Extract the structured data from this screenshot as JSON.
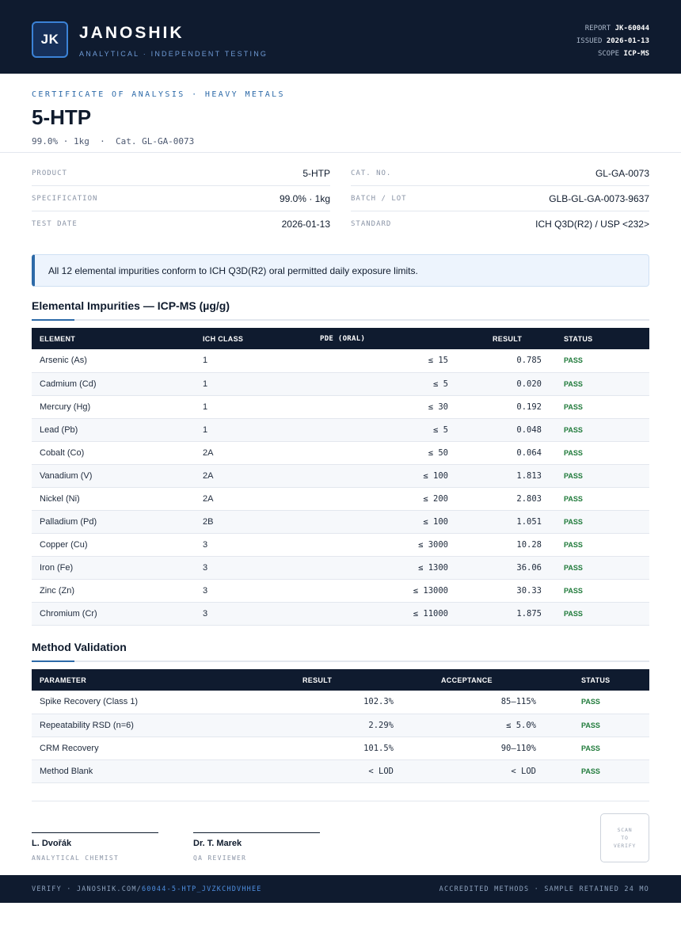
{
  "header": {
    "logo_text": "JK",
    "brand": "JANOSHIK",
    "tagline": "ANALYTICAL · INDEPENDENT TESTING",
    "report_label": "REPORT",
    "report_value": "JK-60044",
    "issued_label": "ISSUED",
    "issued_value": "2026-01-13",
    "scope_label": "SCOPE",
    "scope_value": "ICP-MS"
  },
  "title_block": {
    "certificate_label": "CERTIFICATE OF ANALYSIS · HEAVY METALS",
    "product_title": "5-HTP",
    "subline": "99.0% · 1kg  ·  Cat. GL-GA-0073"
  },
  "info": {
    "left": [
      {
        "label": "PRODUCT",
        "value": "5-HTP"
      },
      {
        "label": "SPECIFICATION",
        "value": "99.0% · 1kg"
      },
      {
        "label": "TEST DATE",
        "value": "2026-01-13"
      }
    ],
    "right": [
      {
        "label": "CAT. NO.",
        "value": "GL-GA-0073"
      },
      {
        "label": "BATCH / LOT",
        "value": "GLB-GL-GA-0073-9637"
      },
      {
        "label": "STANDARD",
        "value": "ICH Q3D(R2) / USP <232>"
      }
    ]
  },
  "notice": "All 12 elemental impurities conform to ICH Q3D(R2) oral permitted daily exposure limits.",
  "impurities": {
    "title": "Elemental Impurities — ICP-MS (µg/g)",
    "headers": [
      "ELEMENT",
      "ICH CLASS",
      "PDE (ORAL)",
      "RESULT",
      "STATUS"
    ],
    "rows": [
      {
        "element": "Arsenic (As)",
        "class": "1",
        "pde": "≤ 15",
        "result": "0.785",
        "status": "PASS"
      },
      {
        "element": "Cadmium (Cd)",
        "class": "1",
        "pde": "≤ 5",
        "result": "0.020",
        "status": "PASS"
      },
      {
        "element": "Mercury (Hg)",
        "class": "1",
        "pde": "≤ 30",
        "result": "0.192",
        "status": "PASS"
      },
      {
        "element": "Lead (Pb)",
        "class": "1",
        "pde": "≤ 5",
        "result": "0.048",
        "status": "PASS"
      },
      {
        "element": "Cobalt (Co)",
        "class": "2A",
        "pde": "≤ 50",
        "result": "0.064",
        "status": "PASS"
      },
      {
        "element": "Vanadium (V)",
        "class": "2A",
        "pde": "≤ 100",
        "result": "1.813",
        "status": "PASS"
      },
      {
        "element": "Nickel (Ni)",
        "class": "2A",
        "pde": "≤ 200",
        "result": "2.803",
        "status": "PASS"
      },
      {
        "element": "Palladium (Pd)",
        "class": "2B",
        "pde": "≤ 100",
        "result": "1.051",
        "status": "PASS"
      },
      {
        "element": "Copper (Cu)",
        "class": "3",
        "pde": "≤ 3000",
        "result": "10.28",
        "status": "PASS"
      },
      {
        "element": "Iron (Fe)",
        "class": "3",
        "pde": "≤ 1300",
        "result": "36.06",
        "status": "PASS"
      },
      {
        "element": "Zinc (Zn)",
        "class": "3",
        "pde": "≤ 13000",
        "result": "30.33",
        "status": "PASS"
      },
      {
        "element": "Chromium (Cr)",
        "class": "3",
        "pde": "≤ 11000",
        "result": "1.875",
        "status": "PASS"
      }
    ]
  },
  "validation": {
    "title": "Method Validation",
    "headers": [
      "PARAMETER",
      "RESULT",
      "ACCEPTANCE",
      "STATUS"
    ],
    "rows": [
      {
        "parameter": "Spike Recovery (Class 1)",
        "result": "102.3%",
        "acceptance": "85–115%",
        "status": "PASS"
      },
      {
        "parameter": "Repeatability RSD (n=6)",
        "result": "2.29%",
        "acceptance": "≤ 5.0%",
        "status": "PASS"
      },
      {
        "parameter": "CRM Recovery",
        "result": "101.5%",
        "acceptance": "90–110%",
        "status": "PASS"
      },
      {
        "parameter": "Method Blank",
        "result": "< LOD",
        "acceptance": "< LOD",
        "status": "PASS"
      }
    ]
  },
  "signatures": [
    {
      "name": "L. Dvořák",
      "role": "ANALYTICAL CHEMIST"
    },
    {
      "name": "Dr. T. Marek",
      "role": "QA REVIEWER"
    }
  ],
  "qr_text": [
    "SCAN",
    "TO",
    "VERIFY"
  ],
  "footer": {
    "verify_prefix": "VERIFY · JANOSHIK.COM/",
    "verify_link": "60044-5-HTP_JVZKCHDVHHEE",
    "right_text": "ACCREDITED METHODS · SAMPLE RETAINED 24 MO"
  },
  "colors": {
    "navy": "#0f1b2f",
    "accent_blue": "#2d6aa8",
    "pass_green": "#1f7a3a"
  }
}
